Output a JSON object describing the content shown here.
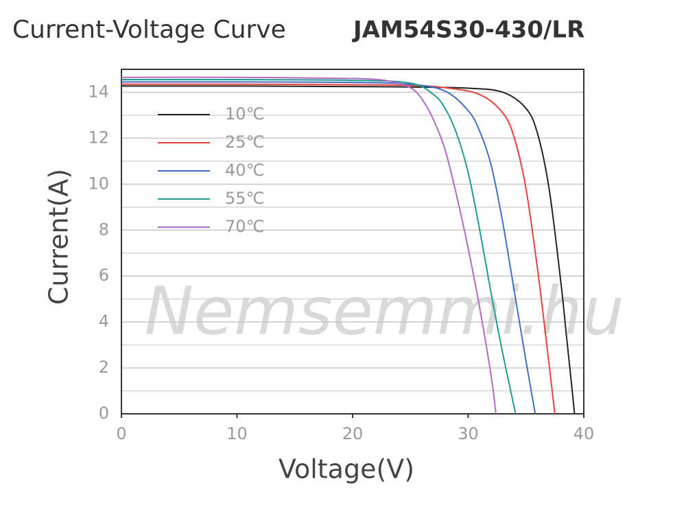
{
  "chart_data": {
    "type": "line",
    "title": "Current-Voltage Curve",
    "subtitle": "JAM54S30-430/LR",
    "watermark": "Nemsemmi.hu",
    "xlabel": "Voltage(V)",
    "ylabel": "Current(A)",
    "xlim": [
      0,
      40
    ],
    "xticks": [
      0,
      10,
      20,
      30,
      40
    ],
    "ylim": [
      0,
      15
    ],
    "yticks": [
      0,
      2,
      4,
      6,
      8,
      10,
      12,
      14
    ],
    "minor_yticks": [
      1,
      3,
      5,
      7,
      9,
      11,
      13
    ],
    "grid": true,
    "legend": "upper-left",
    "series": [
      {
        "name": "10℃",
        "color": "#222222",
        "x": [
          0,
          10,
          20,
          25,
          30,
          33,
          35,
          36,
          37,
          38,
          38.5,
          39,
          39.2
        ],
        "values": [
          14.27,
          14.27,
          14.25,
          14.23,
          14.18,
          14.0,
          13.3,
          12.2,
          9.8,
          5.8,
          3.4,
          1.0,
          0
        ]
      },
      {
        "name": "25℃",
        "color": "#e8413c",
        "x": [
          0,
          10,
          20,
          25,
          28,
          31,
          33,
          34,
          35,
          36,
          36.8,
          37.5
        ],
        "values": [
          14.35,
          14.35,
          14.33,
          14.3,
          14.2,
          13.9,
          13.1,
          12.0,
          9.8,
          6.3,
          3.0,
          0
        ]
      },
      {
        "name": "40℃",
        "color": "#3f6fc4",
        "x": [
          0,
          10,
          20,
          25,
          28,
          30,
          31,
          32,
          33,
          34,
          35,
          35.8
        ],
        "values": [
          14.45,
          14.45,
          14.43,
          14.35,
          14.05,
          13.2,
          12.3,
          10.8,
          8.3,
          5.3,
          2.3,
          0
        ]
      },
      {
        "name": "55℃",
        "color": "#1f9a8e",
        "x": [
          0,
          10,
          20,
          25,
          27,
          28,
          29,
          30,
          31,
          32,
          33,
          34.1
        ],
        "values": [
          14.55,
          14.55,
          14.52,
          14.4,
          13.9,
          13.3,
          12.2,
          10.5,
          8.0,
          5.2,
          2.6,
          0
        ]
      },
      {
        "name": "70℃",
        "color": "#b268c4",
        "x": [
          0,
          10,
          20,
          23,
          25,
          26,
          27,
          28,
          29,
          30,
          31,
          32,
          32.4
        ],
        "values": [
          14.65,
          14.65,
          14.6,
          14.5,
          14.2,
          13.7,
          12.8,
          11.5,
          9.5,
          7.2,
          4.6,
          1.6,
          0
        ]
      }
    ]
  }
}
